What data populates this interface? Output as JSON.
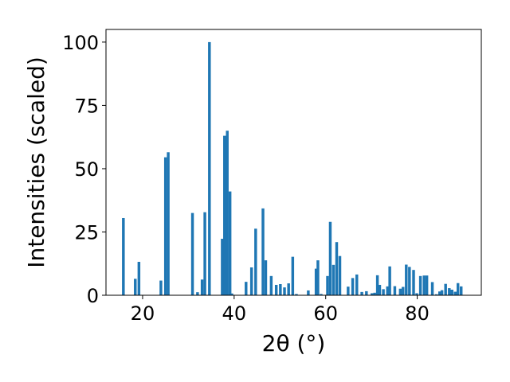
{
  "chart_data": {
    "type": "bar",
    "title": "",
    "xlabel": "2θ (°)",
    "ylabel": "Intensities (scaled)",
    "xlim": [
      12,
      94
    ],
    "ylim": [
      0,
      105
    ],
    "xticks": [
      20,
      40,
      60,
      80
    ],
    "yticks": [
      0,
      25,
      50,
      75,
      100
    ],
    "grid": false,
    "bar_width": 0.6,
    "color": "#1f77b4",
    "x": [
      15.8,
      18.4,
      19.2,
      24.0,
      25.0,
      25.6,
      30.9,
      32.0,
      33.0,
      33.6,
      34.6,
      37.4,
      37.9,
      38.5,
      39.1,
      39.5,
      42.6,
      43.8,
      44.7,
      46.3,
      46.9,
      48.1,
      49.2,
      50.1,
      51.0,
      51.9,
      52.8,
      53.6,
      56.2,
      57.9,
      58.3,
      59.0,
      60.4,
      61.0,
      61.7,
      62.4,
      63.1,
      64.9,
      65.9,
      66.8,
      67.9,
      68.9,
      70.1,
      70.7,
      71.3,
      71.8,
      72.6,
      73.5,
      74.0,
      75.1,
      76.3,
      76.9,
      77.6,
      78.3,
      79.2,
      79.9,
      80.7,
      81.5,
      82.1,
      83.3,
      84.2,
      84.9,
      85.4,
      86.2,
      87.0,
      87.6,
      88.3,
      88.9,
      89.6
    ],
    "values": [
      30.5,
      6.5,
      13.2,
      5.8,
      54.5,
      56.5,
      32.5,
      1.2,
      6.2,
      32.8,
      100.0,
      22.3,
      63.0,
      65.0,
      41.0,
      0.7,
      5.3,
      11.0,
      26.3,
      34.3,
      13.8,
      7.6,
      4.1,
      4.4,
      3.1,
      4.7,
      15.2,
      0.5,
      1.9,
      10.5,
      13.8,
      0.5,
      7.6,
      29.0,
      12.0,
      21.0,
      15.5,
      3.4,
      6.8,
      8.2,
      1.3,
      1.6,
      0.8,
      1.0,
      7.9,
      4.1,
      2.4,
      3.5,
      11.4,
      3.6,
      2.6,
      3.3,
      12.1,
      11.2,
      10.0,
      0.8,
      7.6,
      7.8,
      7.8,
      5.2,
      0.4,
      1.5,
      2.0,
      4.5,
      2.8,
      2.2,
      1.4,
      4.8,
      3.5
    ]
  }
}
